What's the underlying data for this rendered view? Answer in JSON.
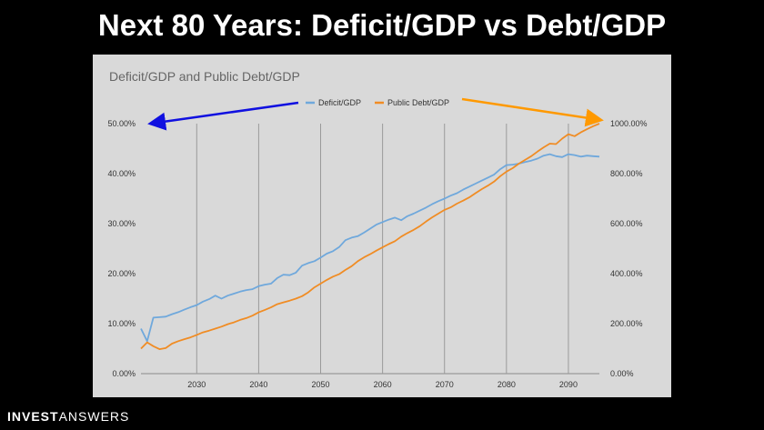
{
  "page": {
    "title": "Next 80 Years: Deficit/GDP vs Debt/GDP"
  },
  "branding": {
    "part1": "INVEST",
    "part2": "ANSWERS"
  },
  "colors": {
    "deficit": "#6fa8dc",
    "debt": "#f08c24",
    "arrow_left": "#1010e0",
    "arrow_right": "#ff9900",
    "panel": "#d9d9d9",
    "grid": "#9a9a9a"
  },
  "chart_data": {
    "type": "line",
    "title": "Deficit/GDP and Public Debt/GDP",
    "legend_position": "top-right",
    "grid": true,
    "x_ticks": [
      2030,
      2040,
      2050,
      2060,
      2070,
      2080,
      2090
    ],
    "x_range": [
      2021,
      2095
    ],
    "y_left": {
      "range": [
        0,
        50
      ],
      "ticks": [
        0,
        10,
        20,
        30,
        40,
        50
      ],
      "tick_labels": [
        "0.00%",
        "10.00%",
        "20.00%",
        "30.00%",
        "40.00%",
        "50.00%"
      ]
    },
    "y_right": {
      "range": [
        0,
        1000
      ],
      "ticks": [
        0,
        200,
        400,
        600,
        800,
        1000
      ],
      "tick_labels": [
        "0.00%",
        "200.00%",
        "400.00%",
        "600.00%",
        "800.00%",
        "1000.00%"
      ]
    },
    "x": [
      2021,
      2022,
      2023,
      2024,
      2025,
      2026,
      2027,
      2028,
      2029,
      2030,
      2031,
      2032,
      2033,
      2034,
      2035,
      2036,
      2037,
      2038,
      2039,
      2040,
      2041,
      2042,
      2043,
      2044,
      2045,
      2046,
      2047,
      2048,
      2049,
      2050,
      2051,
      2052,
      2053,
      2054,
      2055,
      2056,
      2057,
      2058,
      2059,
      2060,
      2061,
      2062,
      2063,
      2064,
      2065,
      2066,
      2067,
      2068,
      2069,
      2070,
      2071,
      2072,
      2073,
      2074,
      2075,
      2076,
      2077,
      2078,
      2079,
      2080,
      2081,
      2082,
      2083,
      2084,
      2085,
      2086,
      2087,
      2088,
      2089,
      2090,
      2091,
      2092,
      2093,
      2094,
      2095
    ],
    "series": [
      {
        "name": "Deficit/GDP",
        "axis": "left",
        "values": [
          9.0,
          6.5,
          11.2,
          11.3,
          11.4,
          11.9,
          12.3,
          12.8,
          13.3,
          13.7,
          14.4,
          14.9,
          15.6,
          15.0,
          15.6,
          16.0,
          16.4,
          16.7,
          16.9,
          17.5,
          17.8,
          18.0,
          19.1,
          19.8,
          19.7,
          20.2,
          21.6,
          22.1,
          22.5,
          23.2,
          24.0,
          24.5,
          25.3,
          26.7,
          27.2,
          27.5,
          28.2,
          29.0,
          29.8,
          30.3,
          30.8,
          31.2,
          30.7,
          31.5,
          32.0,
          32.6,
          33.2,
          33.9,
          34.5,
          35.0,
          35.6,
          36.1,
          36.8,
          37.4,
          38.0,
          38.6,
          39.2,
          39.8,
          40.9,
          41.7,
          41.8,
          42.0,
          42.3,
          42.6,
          43.0,
          43.6,
          43.9,
          43.5,
          43.3,
          43.9,
          43.7,
          43.4,
          43.6,
          43.5,
          43.4
        ]
      },
      {
        "name": "Public Debt/GDP",
        "axis": "right",
        "values": [
          100,
          125,
          110,
          98,
          102,
          120,
          130,
          138,
          145,
          155,
          165,
          172,
          180,
          188,
          198,
          205,
          215,
          222,
          232,
          245,
          255,
          265,
          278,
          285,
          292,
          300,
          310,
          325,
          345,
          360,
          375,
          388,
          398,
          415,
          430,
          450,
          465,
          478,
          492,
          505,
          518,
          530,
          548,
          562,
          575,
          590,
          608,
          625,
          640,
          655,
          665,
          680,
          692,
          705,
          722,
          738,
          752,
          768,
          790,
          808,
          822,
          840,
          855,
          870,
          888,
          905,
          920,
          918,
          940,
          958,
          950,
          965,
          978,
          990,
          1000
        ]
      }
    ]
  }
}
